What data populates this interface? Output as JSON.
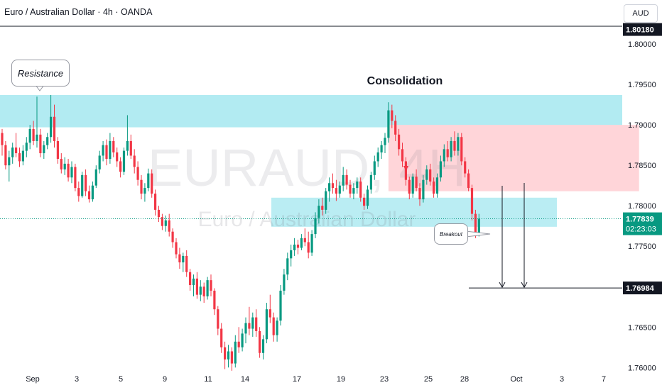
{
  "header": {
    "title": "Euro / Australian Dollar · 4h · OANDA",
    "currency": "AUD"
  },
  "watermark": {
    "symbol": "EURAUD, 4H",
    "name": "Euro / Australian Dollar"
  },
  "annotations": {
    "resistance": "Resistance",
    "consolidation": "Consolidation",
    "breakout": "Breakout"
  },
  "colors": {
    "bull": "#089981",
    "bear": "#f23645",
    "zone": "#b2ebf2",
    "box": "#ffd5d9",
    "price_tag": "#089981"
  },
  "chart_data": {
    "type": "candlestick",
    "x_tick_labels": [
      "Sep",
      "3",
      "5",
      "9",
      "11",
      "14",
      "17",
      "19",
      "23",
      "25",
      "28",
      "Oct",
      "3",
      "7"
    ],
    "y_tick_labels": [
      "1.80000",
      "1.79500",
      "1.79000",
      "1.78500",
      "1.78000",
      "1.77500",
      "1.76500",
      "1.76000"
    ],
    "ylim": [
      1.7595,
      1.8022
    ],
    "current_price": "1.77839",
    "countdown": "02:23:03",
    "target_price": "1.76984",
    "top_price": "1.80180",
    "resistance_zone": [
      1.7897,
      1.7937
    ],
    "support_zone": [
      1.7774,
      1.781
    ],
    "consolidation_box": {
      "from_candle": 111,
      "to_candle": 183,
      "low": 1.7818,
      "high": 1.79
    },
    "candles": [
      [
        1.789,
        1.7895,
        1.7862,
        1.7875
      ],
      [
        1.7875,
        1.788,
        1.7845,
        1.785
      ],
      [
        1.785,
        1.7868,
        1.783,
        1.786
      ],
      [
        1.786,
        1.7878,
        1.7852,
        1.7872
      ],
      [
        1.7872,
        1.789,
        1.786,
        1.7865
      ],
      [
        1.7865,
        1.7872,
        1.7848,
        1.7855
      ],
      [
        1.7855,
        1.7875,
        1.785,
        1.7868
      ],
      [
        1.7868,
        1.7885,
        1.786,
        1.7878
      ],
      [
        1.7878,
        1.79,
        1.787,
        1.7895
      ],
      [
        1.7895,
        1.7905,
        1.7875,
        1.788
      ],
      [
        1.788,
        1.7935,
        1.7872,
        1.7888
      ],
      [
        1.7888,
        1.7895,
        1.786,
        1.7865
      ],
      [
        1.7865,
        1.788,
        1.7858,
        1.7875
      ],
      [
        1.7875,
        1.789,
        1.787,
        1.7885
      ],
      [
        1.7885,
        1.7937,
        1.7878,
        1.791
      ],
      [
        1.791,
        1.7925,
        1.7872,
        1.788
      ],
      [
        1.788,
        1.7885,
        1.7852,
        1.7858
      ],
      [
        1.7858,
        1.7865,
        1.784,
        1.7845
      ],
      [
        1.7845,
        1.786,
        1.7838,
        1.7852
      ],
      [
        1.7852,
        1.7858,
        1.783,
        1.7835
      ],
      [
        1.7835,
        1.7855,
        1.7828,
        1.7848
      ],
      [
        1.7848,
        1.7852,
        1.7818,
        1.7822
      ],
      [
        1.7822,
        1.783,
        1.7805,
        1.7812
      ],
      [
        1.7812,
        1.7842,
        1.781,
        1.7838
      ],
      [
        1.7838,
        1.7845,
        1.7812,
        1.7818
      ],
      [
        1.7818,
        1.7825,
        1.7804,
        1.7808
      ],
      [
        1.7808,
        1.783,
        1.7805,
        1.7825
      ],
      [
        1.7825,
        1.785,
        1.7822,
        1.7845
      ],
      [
        1.7845,
        1.7868,
        1.784,
        1.7862
      ],
      [
        1.7862,
        1.788,
        1.7855,
        1.7875
      ],
      [
        1.7875,
        1.7882,
        1.785,
        1.7858
      ],
      [
        1.7858,
        1.789,
        1.7852,
        1.788
      ],
      [
        1.788,
        1.7885,
        1.786,
        1.7866
      ],
      [
        1.7866,
        1.7872,
        1.7848,
        1.7855
      ],
      [
        1.7855,
        1.786,
        1.7835,
        1.7842
      ],
      [
        1.7842,
        1.7872,
        1.7838,
        1.7868
      ],
      [
        1.7868,
        1.7912,
        1.7862,
        1.788
      ],
      [
        1.788,
        1.7888,
        1.7858,
        1.7862
      ],
      [
        1.7862,
        1.787,
        1.784,
        1.7848
      ],
      [
        1.7848,
        1.7855,
        1.7825,
        1.7832
      ],
      [
        1.7832,
        1.7838,
        1.7808,
        1.7815
      ],
      [
        1.7815,
        1.7828,
        1.7805,
        1.7822
      ],
      [
        1.7822,
        1.7846,
        1.7818,
        1.784
      ],
      [
        1.784,
        1.7845,
        1.781,
        1.7815
      ],
      [
        1.7815,
        1.782,
        1.7788,
        1.7795
      ],
      [
        1.7795,
        1.78,
        1.778,
        1.7786
      ],
      [
        1.7786,
        1.779,
        1.777,
        1.7775
      ],
      [
        1.7775,
        1.7788,
        1.7768,
        1.7782
      ],
      [
        1.7782,
        1.779,
        1.7762,
        1.7768
      ],
      [
        1.7768,
        1.7772,
        1.7748,
        1.7755
      ],
      [
        1.7755,
        1.776,
        1.7735,
        1.774
      ],
      [
        1.774,
        1.7748,
        1.7722,
        1.773
      ],
      [
        1.773,
        1.7742,
        1.7718,
        1.7738
      ],
      [
        1.7738,
        1.7745,
        1.7712,
        1.7718
      ],
      [
        1.7718,
        1.7722,
        1.7695,
        1.7702
      ],
      [
        1.7702,
        1.7715,
        1.7688,
        1.771
      ],
      [
        1.771,
        1.7718,
        1.7685,
        1.769
      ],
      [
        1.769,
        1.7708,
        1.7682,
        1.77
      ],
      [
        1.77,
        1.7705,
        1.768,
        1.7688
      ],
      [
        1.7688,
        1.7712,
        1.7684,
        1.7708
      ],
      [
        1.7708,
        1.7715,
        1.7688,
        1.7695
      ],
      [
        1.7695,
        1.7698,
        1.7665,
        1.7672
      ],
      [
        1.7672,
        1.7676,
        1.764,
        1.7648
      ],
      [
        1.7648,
        1.7655,
        1.7618,
        1.7625
      ],
      [
        1.7625,
        1.7632,
        1.7598,
        1.761
      ],
      [
        1.761,
        1.7628,
        1.76,
        1.762
      ],
      [
        1.762,
        1.7625,
        1.7596,
        1.7605
      ],
      [
        1.7605,
        1.764,
        1.76,
        1.7632
      ],
      [
        1.7632,
        1.765,
        1.7618,
        1.7625
      ],
      [
        1.7625,
        1.7648,
        1.762,
        1.7642
      ],
      [
        1.7642,
        1.7662,
        1.763,
        1.7655
      ],
      [
        1.7655,
        1.7675,
        1.764,
        1.7648
      ],
      [
        1.7648,
        1.7668,
        1.7638,
        1.7662
      ],
      [
        1.7662,
        1.7672,
        1.7638,
        1.7645
      ],
      [
        1.7645,
        1.765,
        1.7612,
        1.7618
      ],
      [
        1.7618,
        1.764,
        1.761,
        1.7635
      ],
      [
        1.7635,
        1.768,
        1.763,
        1.7672
      ],
      [
        1.7672,
        1.769,
        1.7655,
        1.7662
      ],
      [
        1.7662,
        1.7668,
        1.7632,
        1.764
      ],
      [
        1.764,
        1.7662,
        1.7632,
        1.7658
      ],
      [
        1.7658,
        1.7702,
        1.7652,
        1.7695
      ],
      [
        1.7695,
        1.7722,
        1.769,
        1.7715
      ],
      [
        1.7715,
        1.7742,
        1.7708,
        1.7735
      ],
      [
        1.7735,
        1.7752,
        1.7725,
        1.7745
      ],
      [
        1.7745,
        1.776,
        1.7738,
        1.7752
      ],
      [
        1.7752,
        1.7758,
        1.774,
        1.7748
      ],
      [
        1.7748,
        1.7765,
        1.7745,
        1.776
      ],
      [
        1.776,
        1.7772,
        1.775,
        1.7755
      ],
      [
        1.7755,
        1.7768,
        1.7735,
        1.7742
      ],
      [
        1.7742,
        1.777,
        1.7738,
        1.7765
      ],
      [
        1.7765,
        1.7792,
        1.776,
        1.7785
      ],
      [
        1.7785,
        1.7808,
        1.7778,
        1.78
      ],
      [
        1.78,
        1.781,
        1.7788,
        1.7795
      ],
      [
        1.7795,
        1.7822,
        1.779,
        1.7818
      ],
      [
        1.7818,
        1.7835,
        1.7805,
        1.7828
      ],
      [
        1.7828,
        1.784,
        1.7815,
        1.7822
      ],
      [
        1.7822,
        1.7832,
        1.7806,
        1.7815
      ],
      [
        1.7815,
        1.783,
        1.781,
        1.7825
      ],
      [
        1.7825,
        1.7848,
        1.7818,
        1.7838
      ],
      [
        1.7838,
        1.7845,
        1.782,
        1.7826
      ],
      [
        1.7826,
        1.7832,
        1.781,
        1.7815
      ],
      [
        1.7815,
        1.7828,
        1.7808,
        1.7822
      ],
      [
        1.7822,
        1.7835,
        1.7815,
        1.783
      ],
      [
        1.783,
        1.7835,
        1.7805,
        1.781
      ],
      [
        1.781,
        1.7815,
        1.7795,
        1.78
      ],
      [
        1.78,
        1.7825,
        1.7796,
        1.782
      ],
      [
        1.782,
        1.7842,
        1.7815,
        1.7838
      ],
      [
        1.7838,
        1.7862,
        1.7832,
        1.7855
      ],
      [
        1.7855,
        1.7872,
        1.7848,
        1.7866
      ],
      [
        1.7866,
        1.788,
        1.7858,
        1.7875
      ],
      [
        1.7875,
        1.789,
        1.7865,
        1.7884
      ],
      [
        1.7884,
        1.7928,
        1.7878,
        1.7918
      ],
      [
        1.7918,
        1.7925,
        1.7896,
        1.7905
      ],
      [
        1.7905,
        1.7912,
        1.788,
        1.7888
      ],
      [
        1.7888,
        1.7895,
        1.7862,
        1.787
      ],
      [
        1.787,
        1.7878,
        1.7848,
        1.7855
      ],
      [
        1.7855,
        1.786,
        1.7825,
        1.7832
      ],
      [
        1.7832,
        1.7836,
        1.7808,
        1.7815
      ],
      [
        1.7815,
        1.784,
        1.781,
        1.7836
      ],
      [
        1.7836,
        1.7845,
        1.7818,
        1.7822
      ],
      [
        1.7822,
        1.7828,
        1.78,
        1.7808
      ],
      [
        1.7808,
        1.7838,
        1.7804,
        1.7832
      ],
      [
        1.7832,
        1.785,
        1.7826,
        1.7845
      ],
      [
        1.7845,
        1.7852,
        1.7825,
        1.783
      ],
      [
        1.783,
        1.7835,
        1.781,
        1.7815
      ],
      [
        1.7815,
        1.784,
        1.781,
        1.7835
      ],
      [
        1.7835,
        1.7862,
        1.783,
        1.7855
      ],
      [
        1.7855,
        1.7876,
        1.7848,
        1.787
      ],
      [
        1.787,
        1.788,
        1.7855,
        1.786
      ],
      [
        1.786,
        1.7885,
        1.7855,
        1.788
      ],
      [
        1.788,
        1.7892,
        1.7862,
        1.7868
      ],
      [
        1.7868,
        1.789,
        1.7862,
        1.7885
      ],
      [
        1.7885,
        1.789,
        1.785,
        1.7855
      ],
      [
        1.7855,
        1.786,
        1.7835,
        1.784
      ],
      [
        1.784,
        1.7845,
        1.7818,
        1.7822
      ],
      [
        1.7822,
        1.7826,
        1.7782,
        1.779
      ],
      [
        1.779,
        1.7795,
        1.776,
        1.7766
      ],
      [
        1.7766,
        1.779,
        1.7762,
        1.7784
      ]
    ]
  }
}
